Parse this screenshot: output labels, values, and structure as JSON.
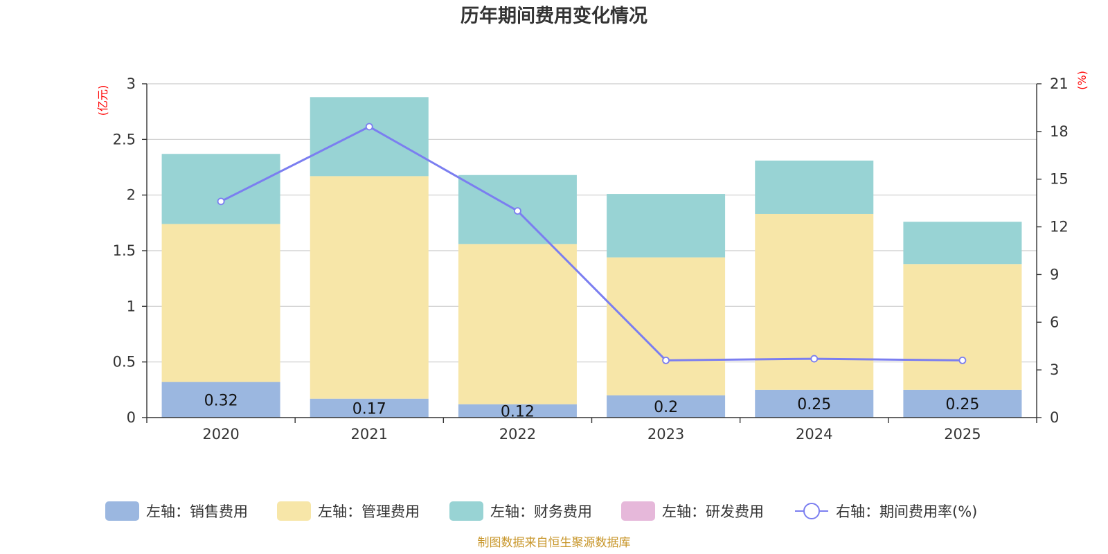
{
  "chart_data": {
    "type": "bar",
    "stacked": true,
    "title": "历年期间费用变化情况",
    "categories": [
      "2020",
      "2021",
      "2022",
      "2023",
      "2024",
      "2025"
    ],
    "left_axis": {
      "unit": "(亿元)",
      "ylim": [
        0,
        3
      ],
      "ticks": [
        "0",
        "0.5",
        "1",
        "1.5",
        "2",
        "2.5",
        "3"
      ]
    },
    "right_axis": {
      "unit": "(%)",
      "ylim": [
        0,
        21
      ],
      "ticks": [
        "0",
        "3",
        "6",
        "9",
        "12",
        "15",
        "18",
        "21"
      ]
    },
    "series": [
      {
        "name": "左轴：销售费用",
        "axis": "left",
        "color": "#9bb7e0",
        "values": [
          0.32,
          0.17,
          0.12,
          0.2,
          0.25,
          0.25
        ],
        "labels": [
          "0.32",
          "0.17",
          "0.12",
          "0.2",
          "0.25",
          "0.25"
        ]
      },
      {
        "name": "左轴：管理费用",
        "axis": "left",
        "color": "#f7e6a8",
        "values": [
          1.42,
          2.0,
          1.44,
          1.24,
          1.58,
          1.13
        ]
      },
      {
        "name": "左轴：财务费用",
        "axis": "left",
        "color": "#98d3d4",
        "values": [
          0.63,
          0.71,
          0.62,
          0.57,
          0.48,
          0.38
        ]
      },
      {
        "name": "左轴：研发费用",
        "axis": "left",
        "color": "#e6b8da",
        "values": [
          0,
          0,
          0,
          0,
          0,
          0
        ]
      },
      {
        "name": "右轴：期间费用率(%)",
        "axis": "right",
        "type": "line",
        "color": "#7b7ef0",
        "values": [
          13.6,
          18.3,
          13.0,
          3.6,
          3.7,
          3.6
        ]
      }
    ],
    "legend_position": "bottom",
    "grid": true
  },
  "source_text": "制图数据来自恒生聚源数据库"
}
